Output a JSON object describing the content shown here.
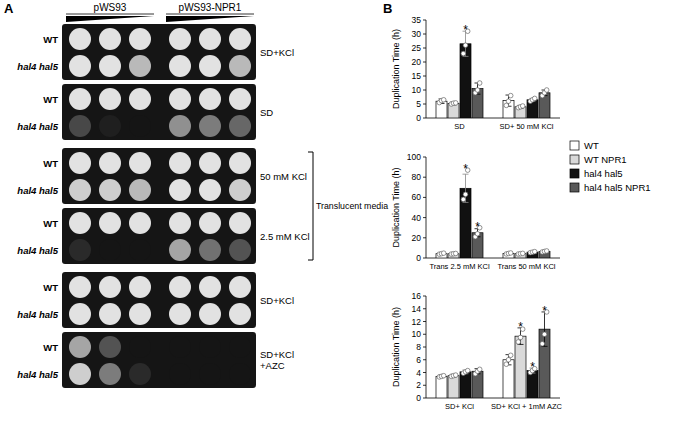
{
  "panel_labels": [
    "A",
    "B"
  ],
  "spot_assay": {
    "plasmids": [
      "pWS93",
      "pWS93-NPR1"
    ],
    "strains": [
      "WT",
      "hal4 hal5"
    ],
    "plates": [
      {
        "condition": [
          "SD+KCl"
        ],
        "growth": [
          [
            1,
            1,
            1,
            1,
            1,
            1
          ],
          [
            1,
            1,
            0.8,
            1,
            1,
            0.8
          ]
        ]
      },
      {
        "condition": [
          "SD"
        ],
        "growth": [
          [
            1,
            1,
            1,
            1,
            1,
            1
          ],
          [
            0.25,
            0.05,
            0,
            0.6,
            0.5,
            0.4
          ]
        ]
      },
      {
        "condition": [
          "50 mM KCl"
        ],
        "growth": [
          [
            1,
            1,
            1,
            1,
            1,
            1
          ],
          [
            0.9,
            0.9,
            0.8,
            1,
            1,
            0.9
          ]
        ]
      },
      {
        "condition": [
          "2.5 mM KCl"
        ],
        "growth": [
          [
            1,
            1,
            1,
            1,
            1,
            1
          ],
          [
            0.1,
            0,
            0,
            0.7,
            0.45,
            0.3
          ]
        ]
      },
      {
        "condition": [
          "SD+KCl"
        ],
        "growth": [
          [
            1,
            1,
            1,
            1,
            1,
            1
          ],
          [
            1,
            1,
            1,
            1,
            1,
            1
          ]
        ]
      },
      {
        "condition": [
          "SD+KCl",
          "+AZC"
        ],
        "growth": [
          [
            0.7,
            0.3,
            0,
            0,
            0,
            0
          ],
          [
            0.9,
            0.5,
            0.1,
            0,
            0,
            0
          ]
        ]
      }
    ],
    "bracket": {
      "label": "Translucent media",
      "plates": [
        2,
        3
      ]
    }
  },
  "chart_data": [
    {
      "type": "bar",
      "y_label": "Duplication Time (h)",
      "categories": [
        "SD",
        "SD+ 50 mM KCl"
      ],
      "ylim": [
        0,
        35
      ],
      "yticks": [
        0,
        5,
        10,
        15,
        20,
        25,
        30,
        35
      ],
      "series": [
        {
          "color": "#ffffff",
          "values": [
            6,
            6.2
          ],
          "errors": [
            0.8,
            2
          ],
          "replicates": [
            [
              5.5,
              6.2,
              6.5
            ],
            [
              4.5,
              6,
              8
            ]
          ]
        },
        {
          "color": "#d9d9d9",
          "values": [
            5.2,
            4
          ],
          "errors": [
            0.5,
            0.5
          ],
          "replicates": [
            [
              5,
              5.3,
              5.4
            ],
            [
              3.7,
              4,
              4.3
            ]
          ]
        },
        {
          "color": "#111111",
          "values": [
            26.5,
            6.5
          ],
          "errors": [
            4.5,
            0.5
          ],
          "replicates": [
            [
              23,
              26,
              31
            ],
            [
              6,
              6.5,
              7
            ]
          ]
        },
        {
          "color": "#595959",
          "values": [
            10.5,
            9
          ],
          "errors": [
            2,
            1
          ],
          "replicates": [
            [
              9,
              10,
              12.5
            ],
            [
              8,
              9,
              10
            ]
          ]
        }
      ],
      "annotations": [
        {
          "text": "*",
          "series": 2,
          "category": 0
        }
      ]
    },
    {
      "type": "bar",
      "y_label": "Duplication Time (h)",
      "categories": [
        "Trans 2.5 mM KCl",
        "Trans 50 mM KCl"
      ],
      "ylim": [
        0,
        100
      ],
      "yticks": [
        0,
        20,
        40,
        60,
        80,
        100
      ],
      "legend": "right",
      "series": [
        {
          "name": "WT",
          "color": "#ffffff",
          "values": [
            4.3,
            4.5
          ],
          "errors": [
            0.5,
            0.5
          ],
          "replicates": [
            [
              3.8,
              4.3,
              4.8
            ],
            [
              4,
              4.5,
              5
            ]
          ]
        },
        {
          "name": "WT NPR1",
          "color": "#d9d9d9",
          "values": [
            4.2,
            4.3
          ],
          "errors": [
            0.5,
            0.3
          ],
          "replicates": [
            [
              3.9,
              4.2,
              4.5
            ],
            [
              4,
              4.3,
              4.6
            ]
          ]
        },
        {
          "name": "hal4 hal5",
          "color": "#111111",
          "values": [
            69,
            5.8
          ],
          "errors": [
            14,
            0.5
          ],
          "replicates": [
            [
              58,
              63,
              87
            ],
            [
              5.3,
              5.8,
              6.3
            ]
          ]
        },
        {
          "name": "hal4 hal5 NPR1",
          "color": "#595959",
          "values": [
            25,
            6.5
          ],
          "errors": [
            4,
            0.8
          ],
          "replicates": [
            [
              21,
              24,
              30
            ],
            [
              6,
              6.5,
              7
            ]
          ]
        }
      ],
      "annotations": [
        {
          "text": "*",
          "series": 2,
          "category": 0
        },
        {
          "text": "*",
          "series": 3,
          "category": 0
        }
      ]
    },
    {
      "type": "bar",
      "y_label": "Duplication Time (h)",
      "categories": [
        "SD+ KCl",
        "SD+ KCl + 1mM AZC"
      ],
      "ylim": [
        0,
        16
      ],
      "yticks": [
        0,
        2,
        4,
        6,
        8,
        10,
        12,
        14,
        16
      ],
      "series": [
        {
          "color": "#ffffff",
          "values": [
            3.4,
            6
          ],
          "errors": [
            0.2,
            0.8
          ],
          "replicates": [
            [
              3.3,
              3.4,
              3.5
            ],
            [
              5.3,
              6,
              6.7
            ]
          ]
        },
        {
          "color": "#d9d9d9",
          "values": [
            3.5,
            9.7
          ],
          "errors": [
            0.2,
            1.3
          ],
          "replicates": [
            [
              3.4,
              3.5,
              3.6
            ],
            [
              8.8,
              9.5,
              10.8
            ]
          ]
        },
        {
          "color": "#111111",
          "values": [
            4.1,
            4.3
          ],
          "errors": [
            0.3,
            0.4
          ],
          "replicates": [
            [
              3.9,
              4.1,
              4.3
            ],
            [
              4,
              4.3,
              4.6
            ]
          ]
        },
        {
          "color": "#595959",
          "values": [
            4.2,
            10.8
          ],
          "errors": [
            0.4,
            2.7
          ],
          "replicates": [
            [
              3.8,
              4.2,
              4.5
            ],
            [
              8.5,
              10,
              13.5
            ]
          ]
        }
      ],
      "annotations": [
        {
          "text": "*",
          "series": 1,
          "category": 1
        },
        {
          "text": "*",
          "series": 2,
          "category": 1
        },
        {
          "text": "*",
          "series": 3,
          "category": 1
        }
      ]
    }
  ]
}
